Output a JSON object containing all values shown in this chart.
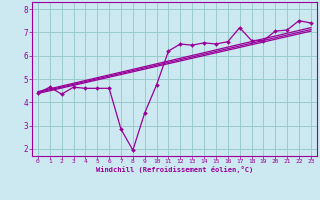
{
  "xlabel": "Windchill (Refroidissement éolien,°C)",
  "bg_color": "#cce8f0",
  "line_color": "#990099",
  "grid_color": "#99cccc",
  "xlim": [
    -0.5,
    23.5
  ],
  "ylim": [
    1.7,
    8.3
  ],
  "xticks": [
    0,
    1,
    2,
    3,
    4,
    5,
    6,
    7,
    8,
    9,
    10,
    11,
    12,
    13,
    14,
    15,
    16,
    17,
    18,
    19,
    20,
    21,
    22,
    23
  ],
  "yticks": [
    2,
    3,
    4,
    5,
    6,
    7,
    8
  ],
  "line1_x": [
    0,
    1,
    2,
    3,
    4,
    5,
    6,
    7,
    8,
    9,
    10,
    11,
    12,
    13,
    14,
    15,
    16,
    17,
    18,
    19,
    20,
    21,
    22,
    23
  ],
  "line1_y": [
    4.4,
    4.65,
    4.35,
    4.65,
    4.6,
    4.6,
    4.6,
    2.85,
    1.95,
    3.55,
    4.75,
    6.2,
    6.5,
    6.45,
    6.55,
    6.5,
    6.6,
    7.2,
    6.65,
    6.65,
    7.05,
    7.1,
    7.5,
    7.4
  ],
  "line2_x": [
    0,
    23
  ],
  "line2_y": [
    4.38,
    7.05
  ],
  "line3_x": [
    0,
    23
  ],
  "line3_y": [
    4.42,
    7.12
  ],
  "line4_x": [
    0,
    23
  ],
  "line4_y": [
    4.46,
    7.2
  ]
}
